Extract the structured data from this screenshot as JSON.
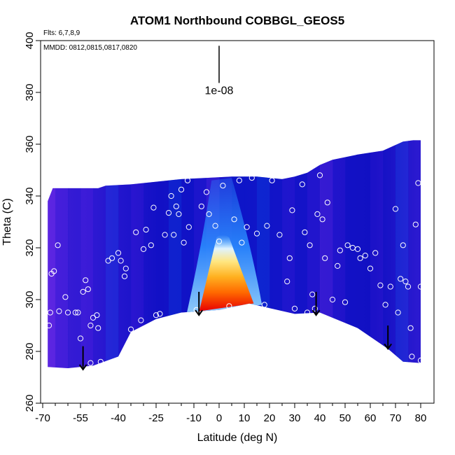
{
  "chart_data": {
    "type": "heatmap",
    "title": "ATOM1 Northbound COBBGL_GEOS5",
    "notes": [
      "Flts: 6,7,8,9",
      "MMDD: 0812,0815,0817,0820"
    ],
    "xlabel": "Latitude (deg N)",
    "ylabel": "Theta (C)",
    "xlim": [
      -70,
      85
    ],
    "ylim": [
      260,
      400
    ],
    "xticks": [
      -70,
      -55,
      -40,
      -25,
      -10,
      0,
      10,
      20,
      30,
      40,
      50,
      60,
      70,
      80
    ],
    "xminor_step": 5,
    "yticks": [
      260,
      280,
      300,
      320,
      340,
      360,
      380,
      400
    ],
    "scale_bar": {
      "label": "1e-08",
      "x": 0,
      "y_top": 398,
      "y_bottom": 385
    },
    "colormap": [
      "#6a28e8",
      "#3218d8",
      "#0f10c8",
      "#0a40e0",
      "#2c8cff",
      "#7cd0ff",
      "#d8eefa",
      "#ffd040",
      "#ff8000",
      "#e00000"
    ],
    "field": {
      "lat_range": [
        -68,
        77
      ],
      "top_boundary": [
        [
          -68,
          338
        ],
        [
          -66,
          343
        ],
        [
          -48,
          343
        ],
        [
          -45,
          344
        ],
        [
          -35,
          344.5
        ],
        [
          -25,
          345.5
        ],
        [
          -15,
          346.5
        ],
        [
          -5,
          347
        ],
        [
          5,
          347.5
        ],
        [
          15,
          347.5
        ],
        [
          25,
          346.5
        ],
        [
          30,
          347.5
        ],
        [
          35,
          349
        ],
        [
          40,
          352
        ],
        [
          45,
          354
        ],
        [
          55,
          356
        ],
        [
          65,
          357.5
        ],
        [
          73,
          361
        ],
        [
          77,
          361.5
        ]
      ],
      "bottom_boundary": [
        [
          -68,
          274
        ],
        [
          -60,
          273.5
        ],
        [
          -50,
          274.5
        ],
        [
          -40,
          278
        ],
        [
          -35,
          287.5
        ],
        [
          -25,
          292.5
        ],
        [
          -15,
          295
        ],
        [
          0,
          296
        ],
        [
          12,
          298.5
        ],
        [
          30,
          294.5
        ],
        [
          40,
          295
        ],
        [
          55,
          289
        ],
        [
          67,
          281
        ],
        [
          73,
          276
        ],
        [
          80,
          275.5
        ]
      ],
      "core": {
        "lat": 7,
        "theta": 297.5,
        "top_theta": 324,
        "width_deg": 24
      }
    },
    "scatter_points": [
      [
        -67.5,
        290
      ],
      [
        -67,
        295
      ],
      [
        -66.5,
        310
      ],
      [
        -65.5,
        311
      ],
      [
        -64,
        321
      ],
      [
        -63.5,
        295.5
      ],
      [
        -61,
        301
      ],
      [
        -60,
        295
      ],
      [
        -57,
        295
      ],
      [
        -56,
        295
      ],
      [
        -55,
        285
      ],
      [
        -54,
        303
      ],
      [
        -53,
        307.5
      ],
      [
        -52,
        304
      ],
      [
        -51,
        290
      ],
      [
        -51,
        275.5
      ],
      [
        -50,
        293
      ],
      [
        -48.5,
        294
      ],
      [
        -48,
        289
      ],
      [
        -47,
        276
      ],
      [
        -44,
        315
      ],
      [
        -42.5,
        316
      ],
      [
        -40,
        318
      ],
      [
        -39,
        315
      ],
      [
        -37,
        312
      ],
      [
        -37.5,
        309
      ],
      [
        -35,
        288.5
      ],
      [
        -33,
        326
      ],
      [
        -31,
        292
      ],
      [
        -30,
        319.5
      ],
      [
        -29,
        327
      ],
      [
        -27,
        321
      ],
      [
        -26,
        335.5
      ],
      [
        -25,
        294
      ],
      [
        -23.5,
        294.5
      ],
      [
        -21.5,
        325
      ],
      [
        -20,
        333.5
      ],
      [
        -19,
        340
      ],
      [
        -18,
        325
      ],
      [
        -17,
        336
      ],
      [
        -16,
        333
      ],
      [
        -15,
        342.5
      ],
      [
        -14,
        322
      ],
      [
        -12.5,
        346
      ],
      [
        -12,
        328
      ],
      [
        -9,
        296
      ],
      [
        -7,
        336
      ],
      [
        -5,
        341.5
      ],
      [
        -4,
        333
      ],
      [
        -1.5,
        328.5
      ],
      [
        0,
        322.5
      ],
      [
        1.5,
        344
      ],
      [
        4,
        297.5
      ],
      [
        6,
        331
      ],
      [
        8,
        346
      ],
      [
        9,
        322
      ],
      [
        11,
        328
      ],
      [
        13,
        347
      ],
      [
        15,
        325.5
      ],
      [
        18,
        298
      ],
      [
        19,
        328.5
      ],
      [
        21,
        346
      ],
      [
        24,
        325
      ],
      [
        27,
        307
      ],
      [
        28,
        316
      ],
      [
        29,
        334.5
      ],
      [
        30,
        296.5
      ],
      [
        33,
        344.5
      ],
      [
        34,
        326
      ],
      [
        35,
        295
      ],
      [
        36,
        321
      ],
      [
        37,
        302
      ],
      [
        38,
        296.5
      ],
      [
        39,
        333
      ],
      [
        40,
        348
      ],
      [
        41,
        331
      ],
      [
        42,
        316
      ],
      [
        43,
        337.5
      ],
      [
        45,
        300
      ],
      [
        47,
        313
      ],
      [
        48,
        319
      ],
      [
        50,
        299
      ],
      [
        51,
        321
      ],
      [
        53,
        320
      ],
      [
        55,
        319.5
      ],
      [
        56,
        316
      ],
      [
        58,
        317
      ],
      [
        60,
        312
      ],
      [
        62,
        318
      ],
      [
        64,
        305.5
      ],
      [
        66,
        298
      ],
      [
        68,
        305
      ],
      [
        70,
        335
      ],
      [
        71,
        295
      ],
      [
        72,
        308
      ],
      [
        73,
        321
      ],
      [
        74,
        307
      ],
      [
        75,
        305
      ],
      [
        76,
        289
      ],
      [
        76.5,
        278
      ],
      [
        78,
        329
      ],
      [
        79,
        345
      ],
      [
        80,
        305
      ],
      [
        80,
        276.5
      ]
    ],
    "arrows": [
      {
        "lat": -54,
        "from": 282,
        "to": 273
      },
      {
        "lat": -8,
        "from": 303,
        "to": 294
      },
      {
        "lat": 38.5,
        "from": 303,
        "to": 294
      },
      {
        "lat": 67,
        "from": 290,
        "to": 281
      }
    ]
  }
}
